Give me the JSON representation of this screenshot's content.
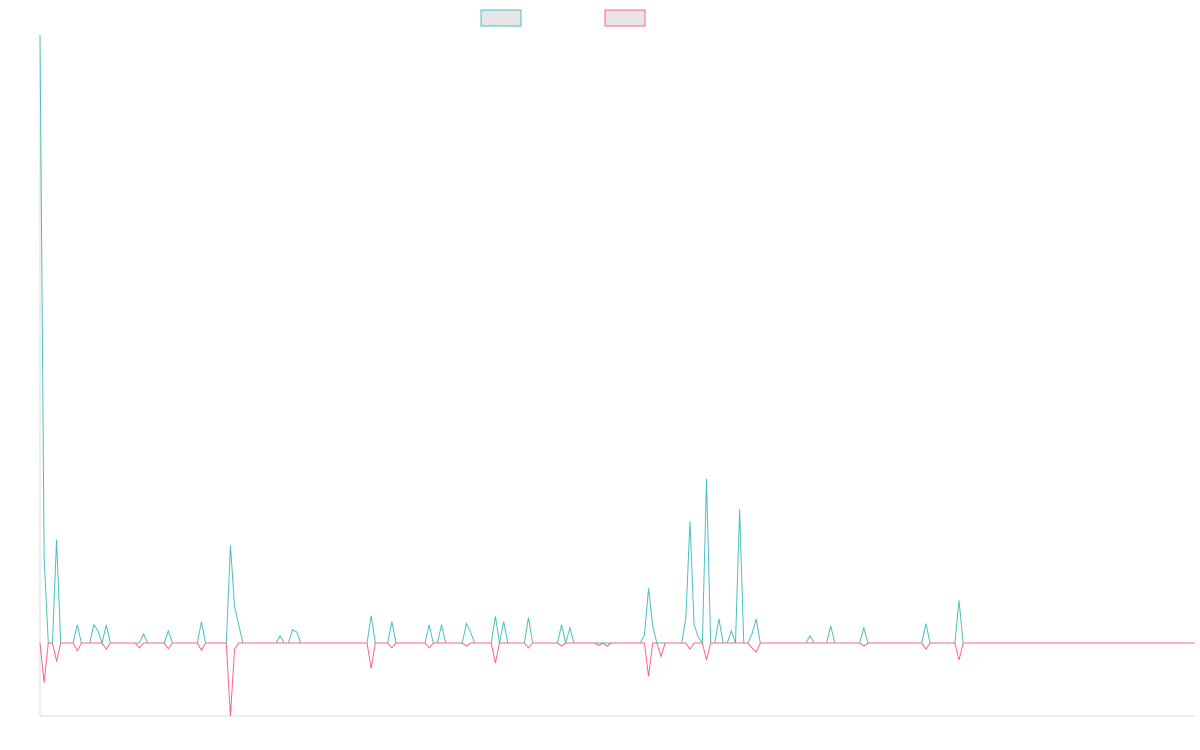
{
  "colors": {
    "positive": "#4bc0c0",
    "negative": "#ff6384",
    "legend_fill": "#e6e6e6",
    "axis": "#dddddd",
    "background": "#ffffff"
  },
  "chart_data": {
    "type": "line",
    "title": "",
    "xlabel": "",
    "ylabel": "",
    "grid": false,
    "legend_position": "top-center",
    "x_count": 280,
    "ylim": [
      -0.12,
      1.0
    ],
    "series": [
      {
        "color": "#4bc0c0",
        "spikes": [
          [
            0,
            1.0
          ],
          [
            1,
            0.14
          ],
          [
            4,
            0.17
          ],
          [
            9,
            0.03
          ],
          [
            13,
            0.03
          ],
          [
            14,
            0.02
          ],
          [
            16,
            0.03
          ],
          [
            25,
            0.015
          ],
          [
            31,
            0.02
          ],
          [
            39,
            0.035
          ],
          [
            46,
            0.16
          ],
          [
            47,
            0.06
          ],
          [
            48,
            0.03
          ],
          [
            58,
            0.012
          ],
          [
            61,
            0.022
          ],
          [
            62,
            0.018
          ],
          [
            80,
            0.045
          ],
          [
            85,
            0.035
          ],
          [
            94,
            0.03
          ],
          [
            97,
            0.03
          ],
          [
            103,
            0.032
          ],
          [
            104,
            0.018
          ],
          [
            110,
            0.044
          ],
          [
            112,
            0.035
          ],
          [
            118,
            0.042
          ],
          [
            126,
            0.03
          ],
          [
            128,
            0.025
          ],
          [
            146,
            0.013
          ],
          [
            147,
            0.09
          ],
          [
            148,
            0.028
          ],
          [
            156,
            0.04
          ],
          [
            157,
            0.2
          ],
          [
            158,
            0.03
          ],
          [
            159,
            0.01
          ],
          [
            161,
            0.27
          ],
          [
            164,
            0.04
          ],
          [
            167,
            0.02
          ],
          [
            169,
            0.22
          ],
          [
            172,
            0.015
          ],
          [
            173,
            0.04
          ],
          [
            186,
            0.012
          ],
          [
            191,
            0.028
          ],
          [
            199,
            0.025
          ],
          [
            214,
            0.032
          ],
          [
            222,
            0.07
          ]
        ]
      },
      {
        "color": "#ff6384",
        "spikes": [
          [
            1,
            -0.065
          ],
          [
            4,
            -0.03
          ],
          [
            9,
            -0.013
          ],
          [
            16,
            -0.01
          ],
          [
            24,
            -0.008
          ],
          [
            31,
            -0.009
          ],
          [
            39,
            -0.012
          ],
          [
            46,
            -0.12
          ],
          [
            47,
            -0.01
          ],
          [
            80,
            -0.042
          ],
          [
            85,
            -0.008
          ],
          [
            94,
            -0.008
          ],
          [
            103,
            -0.005
          ],
          [
            118,
            -0.008
          ],
          [
            110,
            -0.033
          ],
          [
            126,
            -0.005
          ],
          [
            135,
            -0.004
          ],
          [
            137,
            -0.005
          ],
          [
            147,
            -0.055
          ],
          [
            150,
            -0.022
          ],
          [
            157,
            -0.01
          ],
          [
            161,
            -0.028
          ],
          [
            172,
            -0.008
          ],
          [
            173,
            -0.015
          ],
          [
            199,
            -0.005
          ],
          [
            214,
            -0.01
          ],
          [
            222,
            -0.028
          ]
        ]
      }
    ]
  }
}
